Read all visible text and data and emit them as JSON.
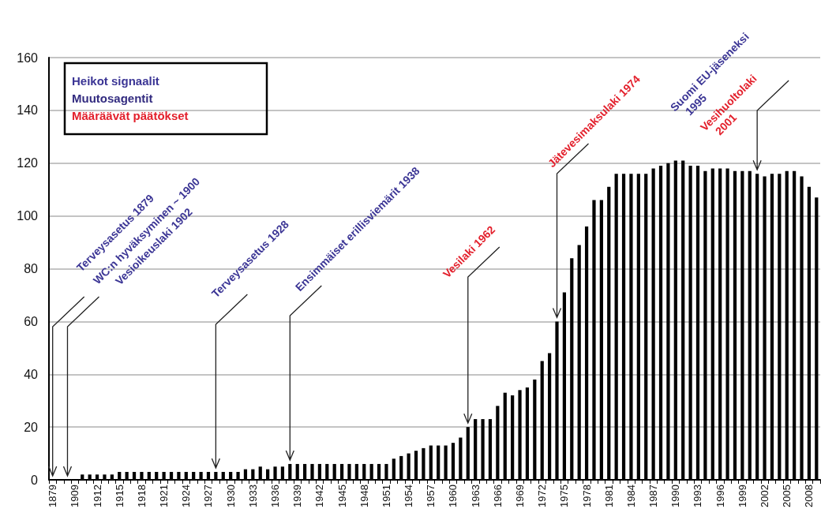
{
  "chart_data": {
    "type": "bar",
    "color": "#000000",
    "ylim": [
      0,
      160
    ],
    "yticks": [
      0,
      20,
      40,
      60,
      80,
      100,
      120,
      140,
      160
    ],
    "grid": "y",
    "categories": [
      "1879",
      null,
      null,
      "1909",
      null,
      null,
      "1912",
      null,
      null,
      "1915",
      null,
      null,
      "1918",
      null,
      null,
      "1921",
      null,
      null,
      "1924",
      null,
      null,
      "1927",
      null,
      null,
      "1930",
      null,
      null,
      "1933",
      null,
      null,
      "1936",
      null,
      null,
      "1939",
      null,
      null,
      "1942",
      null,
      null,
      "1945",
      null,
      null,
      "1948",
      null,
      null,
      "1951",
      null,
      null,
      "1954",
      null,
      null,
      "1957",
      null,
      null,
      "1960",
      null,
      null,
      "1963",
      null,
      null,
      "1966",
      null,
      null,
      "1969",
      null,
      null,
      "1972",
      null,
      null,
      "1975",
      null,
      null,
      "1978",
      null,
      null,
      "1981",
      null,
      null,
      "1984",
      null,
      null,
      "1987",
      null,
      null,
      "1990",
      null,
      null,
      "1993",
      null,
      null,
      "1996",
      null,
      null,
      "1999",
      null,
      null,
      "2002",
      null,
      null,
      "2005",
      null,
      null,
      "2008",
      null
    ],
    "values": [
      null,
      null,
      null,
      null,
      2,
      2,
      2,
      2,
      2,
      3,
      3,
      3,
      3,
      3,
      3,
      3,
      3,
      3,
      3,
      3,
      3,
      3,
      3,
      3,
      3,
      3,
      4,
      4,
      5,
      4,
      5,
      5,
      6,
      6,
      6,
      6,
      6,
      6,
      6,
      6,
      6,
      6,
      6,
      6,
      6,
      6,
      8,
      9,
      10,
      11,
      12,
      13,
      13,
      13,
      14,
      16,
      20,
      23,
      23,
      23,
      28,
      33,
      32,
      34,
      35,
      38,
      45,
      48,
      60,
      71,
      84,
      89,
      96,
      106,
      106,
      111,
      116,
      116,
      116,
      116,
      116,
      118,
      119,
      120,
      121,
      121,
      119,
      119,
      117,
      118,
      118,
      118,
      117,
      117,
      117,
      116,
      115,
      116,
      116,
      117,
      117,
      115,
      111,
      107
    ],
    "annotations": [
      "Heikot signaalit",
      "Muutosagentit",
      "Määräävät päätökset",
      "Terveysasetus 1879",
      "WC:n hyväksyminen ~ 1900",
      "Vesioikeuslaki 1902",
      "Terveysasetus 1928",
      "Ensimmäiset erillisviemärit 1938",
      "Vesilaki 1962",
      "Jätevesimaksulaki 1974",
      "Suomi EU-jäseneksi 1995",
      "Vesihuoltolaki 2001"
    ]
  }
}
